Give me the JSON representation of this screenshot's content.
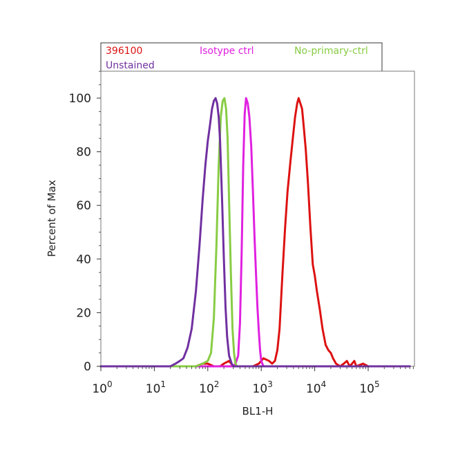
{
  "chart_data": {
    "type": "line",
    "title": "",
    "xlabel": "BL1-H",
    "ylabel": "Percent of Max",
    "x_scale": "log",
    "xlim": [
      1,
      600000
    ],
    "ylim": [
      0,
      110
    ],
    "x_ticks": [
      {
        "base": "10",
        "exp": "0",
        "value": 1
      },
      {
        "base": "10",
        "exp": "1",
        "value": 10
      },
      {
        "base": "10",
        "exp": "2",
        "value": 100
      },
      {
        "base": "10",
        "exp": "3",
        "value": 1000
      },
      {
        "base": "10",
        "exp": "4",
        "value": 10000
      },
      {
        "base": "10",
        "exp": "5",
        "value": 100000
      }
    ],
    "y_ticks": [
      "0",
      "20",
      "40",
      "60",
      "80",
      "100"
    ],
    "legend_placement": "top",
    "grid": false,
    "series": [
      {
        "name": "396100",
        "color": "#dd1111",
        "points": [
          [
            1,
            0
          ],
          [
            30,
            0
          ],
          [
            60,
            0
          ],
          [
            80,
            1
          ],
          [
            100,
            1
          ],
          [
            130,
            0
          ],
          [
            170,
            0
          ],
          [
            200,
            1
          ],
          [
            250,
            2
          ],
          [
            300,
            0
          ],
          [
            500,
            0
          ],
          [
            700,
            0
          ],
          [
            900,
            1
          ],
          [
            1100,
            3
          ],
          [
            1400,
            2
          ],
          [
            1600,
            1
          ],
          [
            1800,
            2
          ],
          [
            2000,
            6
          ],
          [
            2200,
            14
          ],
          [
            2500,
            35
          ],
          [
            2800,
            52
          ],
          [
            3100,
            65
          ],
          [
            3500,
            76
          ],
          [
            3900,
            85
          ],
          [
            4300,
            93
          ],
          [
            4700,
            98
          ],
          [
            5000,
            100
          ],
          [
            5400,
            98
          ],
          [
            5800,
            96
          ],
          [
            6200,
            90
          ],
          [
            6800,
            81
          ],
          [
            7500,
            68
          ],
          [
            8300,
            52
          ],
          [
            9200,
            38
          ],
          [
            10000,
            34
          ],
          [
            11000,
            28
          ],
          [
            12500,
            21
          ],
          [
            14000,
            14
          ],
          [
            16000,
            8
          ],
          [
            18000,
            6
          ],
          [
            20000,
            5
          ],
          [
            22000,
            3
          ],
          [
            25000,
            1
          ],
          [
            30000,
            0
          ],
          [
            35000,
            1
          ],
          [
            40000,
            2
          ],
          [
            45000,
            0
          ],
          [
            50000,
            1
          ],
          [
            55000,
            2
          ],
          [
            60000,
            0
          ],
          [
            80000,
            1
          ],
          [
            100000,
            0
          ],
          [
            600000,
            0
          ]
        ]
      },
      {
        "name": "Isotype ctrl",
        "color": "#e020e0",
        "points": [
          [
            1,
            0
          ],
          [
            300,
            0
          ],
          [
            330,
            1
          ],
          [
            370,
            4
          ],
          [
            400,
            16
          ],
          [
            430,
            42
          ],
          [
            460,
            75
          ],
          [
            490,
            94
          ],
          [
            520,
            100
          ],
          [
            560,
            98
          ],
          [
            600,
            93
          ],
          [
            650,
            82
          ],
          [
            700,
            65
          ],
          [
            750,
            48
          ],
          [
            800,
            34
          ],
          [
            850,
            22
          ],
          [
            900,
            13
          ],
          [
            950,
            6
          ],
          [
            1000,
            2
          ],
          [
            1100,
            0
          ],
          [
            600000,
            0
          ]
        ]
      },
      {
        "name": "No-primary-ctrl",
        "color": "#88cc44",
        "points": [
          [
            1,
            0
          ],
          [
            60,
            0
          ],
          [
            80,
            1
          ],
          [
            100,
            2
          ],
          [
            115,
            5
          ],
          [
            130,
            18
          ],
          [
            145,
            45
          ],
          [
            160,
            75
          ],
          [
            175,
            93
          ],
          [
            190,
            99
          ],
          [
            205,
            100
          ],
          [
            220,
            96
          ],
          [
            235,
            85
          ],
          [
            250,
            62
          ],
          [
            270,
            35
          ],
          [
            290,
            14
          ],
          [
            310,
            5
          ],
          [
            330,
            1
          ],
          [
            350,
            0
          ],
          [
            600000,
            0
          ]
        ]
      },
      {
        "name": "Unstained",
        "color": "#7030a0",
        "points": [
          [
            1,
            0
          ],
          [
            20,
            0
          ],
          [
            25,
            1
          ],
          [
            30,
            2
          ],
          [
            35,
            3
          ],
          [
            42,
            7
          ],
          [
            50,
            14
          ],
          [
            60,
            28
          ],
          [
            70,
            45
          ],
          [
            80,
            62
          ],
          [
            90,
            75
          ],
          [
            100,
            84
          ],
          [
            110,
            90
          ],
          [
            120,
            96
          ],
          [
            130,
            99
          ],
          [
            140,
            100
          ],
          [
            150,
            98
          ],
          [
            160,
            93
          ],
          [
            170,
            84
          ],
          [
            185,
            62
          ],
          [
            200,
            40
          ],
          [
            215,
            22
          ],
          [
            230,
            11
          ],
          [
            250,
            4
          ],
          [
            280,
            1
          ],
          [
            300,
            0
          ],
          [
            600000,
            0
          ]
        ]
      }
    ]
  },
  "legend": {
    "items": [
      {
        "label": "396100",
        "color": "#dd1111"
      },
      {
        "label": "Isotype ctrl",
        "color": "#e020e0"
      },
      {
        "label": "No-primary-ctrl",
        "color": "#88cc44"
      },
      {
        "label": "Unstained",
        "color": "#7030a0"
      }
    ]
  }
}
